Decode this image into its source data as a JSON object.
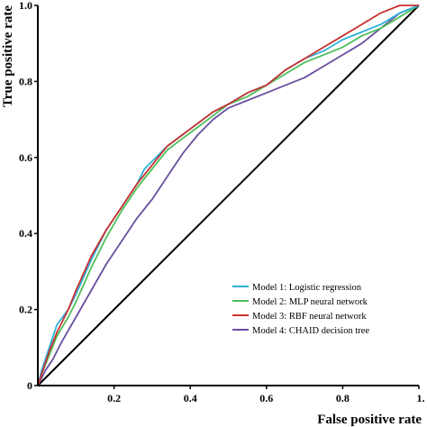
{
  "chart_data": {
    "type": "line",
    "title": "",
    "xlabel": "False positive rate",
    "ylabel": "True positive rate",
    "xlim": [
      0,
      1
    ],
    "ylim": [
      0,
      1
    ],
    "x_ticks": [
      "0.2",
      "0.4",
      "0.6",
      "0.8",
      "1."
    ],
    "y_ticks": [
      "0",
      "0.2",
      "0.4",
      "0.6",
      "0.8",
      "1.0"
    ],
    "grid": false,
    "legend_position": "bottom-right",
    "reference_line": {
      "x": [
        0,
        1
      ],
      "y": [
        0,
        1
      ],
      "color": "#000000"
    },
    "series": [
      {
        "name": "Model 1: Logistic regression",
        "color": "#2eb1d9",
        "x": [
          0,
          0.01,
          0.03,
          0.05,
          0.08,
          0.1,
          0.14,
          0.18,
          0.22,
          0.26,
          0.28,
          0.3,
          0.34,
          0.38,
          0.42,
          0.46,
          0.5,
          0.55,
          0.6,
          0.65,
          0.7,
          0.75,
          0.8,
          0.85,
          0.9,
          0.95,
          1.0
        ],
        "y": [
          0,
          0.04,
          0.1,
          0.16,
          0.2,
          0.24,
          0.33,
          0.41,
          0.47,
          0.53,
          0.57,
          0.59,
          0.63,
          0.66,
          0.69,
          0.72,
          0.74,
          0.77,
          0.79,
          0.83,
          0.86,
          0.88,
          0.91,
          0.93,
          0.95,
          0.98,
          1.0
        ]
      },
      {
        "name": "Model 2: MLP neural network",
        "color": "#4fbf5a",
        "x": [
          0,
          0.01,
          0.03,
          0.05,
          0.08,
          0.1,
          0.14,
          0.18,
          0.22,
          0.26,
          0.3,
          0.34,
          0.38,
          0.42,
          0.46,
          0.5,
          0.55,
          0.6,
          0.65,
          0.7,
          0.75,
          0.8,
          0.85,
          0.9,
          0.95,
          1.0
        ],
        "y": [
          0,
          0.03,
          0.08,
          0.13,
          0.18,
          0.22,
          0.31,
          0.39,
          0.46,
          0.52,
          0.57,
          0.62,
          0.65,
          0.68,
          0.71,
          0.74,
          0.76,
          0.79,
          0.82,
          0.85,
          0.87,
          0.89,
          0.92,
          0.94,
          0.97,
          1.0
        ]
      },
      {
        "name": "Model 3: RBF neural network",
        "color": "#c8302f",
        "x": [
          0,
          0.01,
          0.03,
          0.05,
          0.08,
          0.1,
          0.14,
          0.18,
          0.22,
          0.26,
          0.3,
          0.34,
          0.38,
          0.42,
          0.46,
          0.5,
          0.55,
          0.6,
          0.65,
          0.7,
          0.75,
          0.8,
          0.85,
          0.9,
          0.95,
          1.0
        ],
        "y": [
          0,
          0.03,
          0.09,
          0.14,
          0.2,
          0.25,
          0.34,
          0.41,
          0.47,
          0.53,
          0.58,
          0.63,
          0.66,
          0.69,
          0.72,
          0.74,
          0.77,
          0.79,
          0.83,
          0.86,
          0.89,
          0.92,
          0.95,
          0.98,
          1.0,
          1.0
        ]
      },
      {
        "name": "Model 4: CHAID decision tree",
        "color": "#6a4fa0",
        "x": [
          0,
          0.02,
          0.04,
          0.06,
          0.1,
          0.14,
          0.18,
          0.22,
          0.26,
          0.3,
          0.34,
          0.38,
          0.42,
          0.46,
          0.5,
          0.55,
          0.6,
          0.65,
          0.7,
          0.75,
          0.8,
          0.85,
          0.9,
          0.95,
          1.0
        ],
        "y": [
          0,
          0.04,
          0.07,
          0.11,
          0.18,
          0.25,
          0.32,
          0.38,
          0.44,
          0.49,
          0.55,
          0.61,
          0.66,
          0.7,
          0.73,
          0.75,
          0.77,
          0.79,
          0.81,
          0.84,
          0.87,
          0.9,
          0.94,
          0.98,
          1.0
        ]
      }
    ]
  }
}
